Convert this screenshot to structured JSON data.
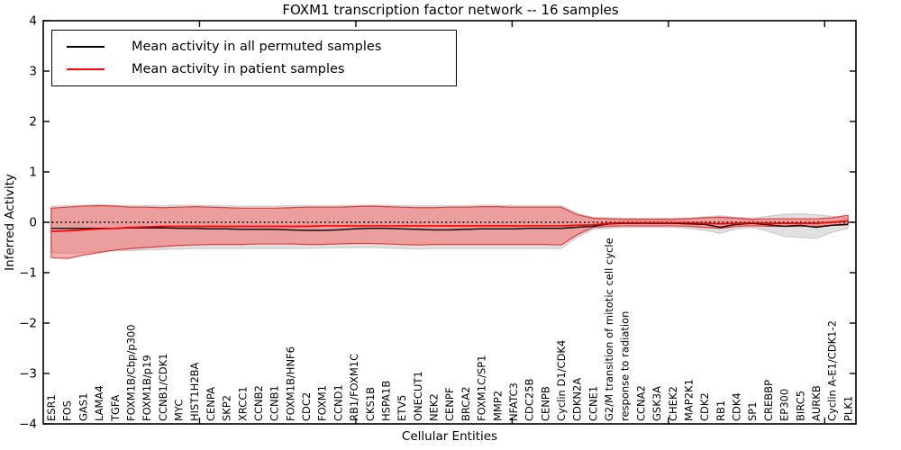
{
  "figure": {
    "title": "FOXM1 transcription factor network -- 16 samples",
    "xlabel": "Cellular Entities",
    "ylabel": "Inferred Activity"
  },
  "legend": {
    "position": "upper left",
    "items": [
      {
        "label": "Mean activity in all permuted samples",
        "color": "#000000"
      },
      {
        "label": "Mean activity in patient samples",
        "color": "#ff0000"
      }
    ]
  },
  "chart_data": {
    "type": "line",
    "title": "FOXM1 transcription factor network -- 16 samples",
    "xlabel": "Cellular Entities",
    "ylabel": "Inferred Activity",
    "ylim": [
      -4,
      4
    ],
    "yticks": [
      -4,
      -3,
      -2,
      -1,
      0,
      1,
      2,
      3,
      4
    ],
    "xticks_unlabeled": [
      10,
      20,
      30,
      40,
      50
    ],
    "grid": false,
    "legend_position": "upper left",
    "zero_reference_line": {
      "y": 0,
      "style": "dotted",
      "color": "#000000"
    },
    "categories": [
      "ESR1",
      "FOS",
      "GAS1",
      "LAMA4",
      "TGFA",
      "FOXM1B/Cbp/p300",
      "FOXM1B/p19",
      "CCNB1/CDK1",
      "MYC",
      "HIST1H2BA",
      "CENPA",
      "SKP2",
      "XRCC1",
      "CCNB2",
      "CCNB1",
      "FOXM1B/HNF6",
      "CDC2",
      "FOXM1",
      "CCND1",
      "RB1/FOXM1C",
      "CKS1B",
      "HSPA1B",
      "ETV5",
      "ONECUT1",
      "NEK2",
      "CENPF",
      "BRCA2",
      "FOXM1C/SP1",
      "MMP2",
      "NFATC3",
      "CDC25B",
      "CENPB",
      "Cyclin D1/CDK4",
      "CDKN2A",
      "CCNE1",
      "G2/M transition of mitotic cell cycle",
      "response to radiation",
      "CCNA2",
      "GSK3A",
      "CHEK2",
      "MAP2K1",
      "CDK2",
      "RB1",
      "CDK4",
      "SP1",
      "CREBBP",
      "EP300",
      "BIRC5",
      "AURKB",
      "Cyclin A-E1/CDK1-2",
      "PLK1"
    ],
    "series": [
      {
        "name": "permuted-samples-band",
        "type": "band",
        "fill": "rgba(70,70,70,0.16)",
        "edge": "rgba(70,70,70,0.20)",
        "upper": [
          0.32,
          0.33,
          0.34,
          0.35,
          0.34,
          0.33,
          0.33,
          0.33,
          0.34,
          0.34,
          0.33,
          0.33,
          0.32,
          0.32,
          0.32,
          0.33,
          0.33,
          0.33,
          0.33,
          0.34,
          0.34,
          0.34,
          0.33,
          0.33,
          0.33,
          0.33,
          0.33,
          0.34,
          0.34,
          0.33,
          0.33,
          0.33,
          0.33,
          0.18,
          0.1,
          0.09,
          0.08,
          0.08,
          0.08,
          0.08,
          0.09,
          0.11,
          0.13,
          0.1,
          0.08,
          0.12,
          0.16,
          0.17,
          0.15,
          0.12,
          0.09
        ],
        "lower": [
          -0.6,
          -0.62,
          -0.6,
          -0.58,
          -0.57,
          -0.56,
          -0.55,
          -0.54,
          -0.53,
          -0.52,
          -0.52,
          -0.52,
          -0.52,
          -0.52,
          -0.52,
          -0.52,
          -0.52,
          -0.51,
          -0.51,
          -0.5,
          -0.5,
          -0.51,
          -0.52,
          -0.53,
          -0.52,
          -0.52,
          -0.52,
          -0.52,
          -0.52,
          -0.52,
          -0.52,
          -0.52,
          -0.52,
          -0.3,
          -0.14,
          -0.12,
          -0.1,
          -0.1,
          -0.1,
          -0.1,
          -0.12,
          -0.16,
          -0.22,
          -0.13,
          -0.1,
          -0.18,
          -0.28,
          -0.3,
          -0.32,
          -0.2,
          -0.12
        ]
      },
      {
        "name": "patient-samples-band",
        "type": "band",
        "fill": "rgba(255,20,20,0.33)",
        "edge": "rgba(220,30,30,0.80)",
        "upper": [
          0.28,
          0.3,
          0.32,
          0.33,
          0.32,
          0.3,
          0.3,
          0.29,
          0.3,
          0.31,
          0.3,
          0.29,
          0.28,
          0.28,
          0.28,
          0.29,
          0.3,
          0.3,
          0.3,
          0.31,
          0.32,
          0.31,
          0.3,
          0.29,
          0.29,
          0.3,
          0.3,
          0.31,
          0.31,
          0.3,
          0.3,
          0.3,
          0.3,
          0.15,
          0.08,
          0.07,
          0.06,
          0.06,
          0.06,
          0.06,
          0.07,
          0.09,
          0.1,
          0.08,
          0.06,
          0.07,
          0.07,
          0.07,
          0.07,
          0.09,
          0.14
        ],
        "lower": [
          -0.7,
          -0.72,
          -0.65,
          -0.6,
          -0.55,
          -0.52,
          -0.5,
          -0.48,
          -0.46,
          -0.45,
          -0.44,
          -0.44,
          -0.44,
          -0.43,
          -0.43,
          -0.43,
          -0.44,
          -0.44,
          -0.43,
          -0.42,
          -0.42,
          -0.43,
          -0.44,
          -0.45,
          -0.44,
          -0.44,
          -0.44,
          -0.44,
          -0.44,
          -0.44,
          -0.44,
          -0.44,
          -0.45,
          -0.25,
          -0.1,
          -0.08,
          -0.07,
          -0.07,
          -0.07,
          -0.07,
          -0.08,
          -0.1,
          -0.12,
          -0.08,
          -0.07,
          -0.08,
          -0.08,
          -0.08,
          -0.08,
          -0.06,
          -0.05
        ]
      },
      {
        "name": "Mean activity in all permuted samples",
        "type": "line",
        "color": "#000000",
        "width": 1.4,
        "values": [
          -0.12,
          -0.12,
          -0.12,
          -0.12,
          -0.12,
          -0.11,
          -0.11,
          -0.11,
          -0.12,
          -0.12,
          -0.13,
          -0.13,
          -0.14,
          -0.14,
          -0.14,
          -0.15,
          -0.16,
          -0.16,
          -0.15,
          -0.13,
          -0.12,
          -0.12,
          -0.13,
          -0.14,
          -0.15,
          -0.15,
          -0.14,
          -0.13,
          -0.13,
          -0.13,
          -0.12,
          -0.12,
          -0.12,
          -0.1,
          -0.08,
          -0.03,
          -0.02,
          -0.02,
          -0.02,
          -0.02,
          -0.03,
          -0.04,
          -0.1,
          -0.04,
          -0.02,
          -0.05,
          -0.08,
          -0.06,
          -0.1,
          -0.06,
          -0.04
        ]
      },
      {
        "name": "Mean activity in patient samples",
        "type": "line",
        "color": "#ff0000",
        "width": 1.7,
        "values": [
          -0.18,
          -0.17,
          -0.15,
          -0.13,
          -0.12,
          -0.1,
          -0.09,
          -0.08,
          -0.08,
          -0.08,
          -0.08,
          -0.08,
          -0.08,
          -0.08,
          -0.08,
          -0.08,
          -0.08,
          -0.07,
          -0.07,
          -0.07,
          -0.07,
          -0.07,
          -0.07,
          -0.07,
          -0.07,
          -0.07,
          -0.07,
          -0.07,
          -0.07,
          -0.07,
          -0.07,
          -0.07,
          -0.07,
          -0.06,
          -0.05,
          -0.02,
          -0.01,
          -0.01,
          -0.01,
          -0.01,
          -0.01,
          -0.02,
          -0.03,
          -0.02,
          -0.01,
          -0.02,
          -0.02,
          -0.02,
          -0.02,
          0.0,
          0.03
        ]
      }
    ]
  }
}
